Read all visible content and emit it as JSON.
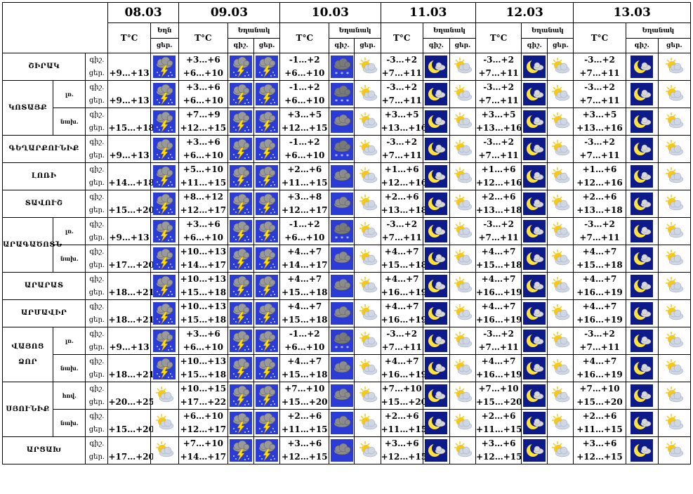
{
  "dates": [
    "08.03",
    "09.03",
    "10.03",
    "11.03",
    "12.03",
    "13.03"
  ],
  "hdr": {
    "temp": "T°C",
    "weather": "Եղանակ",
    "weather_short": "Եղն",
    "day": "ցեր.",
    "night": "գիշ."
  },
  "rows": [
    {
      "group": "ՇԻՐԱԿ",
      "sub": "",
      "t08": [
        "",
        "+9…+13"
      ],
      "t09": [
        "+3…+6",
        "+6…+10"
      ],
      "t10": [
        "-1…+2",
        "+6…+10"
      ],
      "t11": [
        "-3…+2",
        "+7…+11"
      ],
      "t12": [
        "-3…+2",
        "+7…+11"
      ],
      "t13": [
        "-3…+2",
        "+7…+11"
      ],
      "i10": [
        "nightsnow",
        "sunny"
      ]
    },
    {
      "group": "ԿՈՏԱՅՔ",
      "sub": "լռ.",
      "t08": [
        "",
        "+9…+13"
      ],
      "t09": [
        "+3…+6",
        "+6…+10"
      ],
      "t10": [
        "-1…+2",
        "+6…+10"
      ],
      "t11": [
        "-3…+2",
        "+7…+11"
      ],
      "t12": [
        "-3…+2",
        "+7…+11"
      ],
      "t13": [
        "-3…+2",
        "+7…+11"
      ],
      "i10": [
        "nightsnow",
        "sunny"
      ]
    },
    {
      "group": "",
      "sub": "նախ.",
      "t08": [
        "",
        "+15…+18"
      ],
      "t09": [
        "+7…+9",
        "+12…+15"
      ],
      "t10": [
        "+3…+5",
        "+12…+15"
      ],
      "t11": [
        "+3…+5",
        "+13…+16"
      ],
      "t12": [
        "+3…+5",
        "+13…+16"
      ],
      "t13": [
        "+3…+5",
        "+13…+16"
      ],
      "i10": [
        "cloudy",
        "sunny"
      ]
    },
    {
      "group": "ԳԵՂԱՐՔՈՒՆԻՔ",
      "sub": "",
      "t08": [
        "",
        "+9…+13"
      ],
      "t09": [
        "+3…+6",
        "+6…+10"
      ],
      "t10": [
        "-1…+2",
        "+6…+10"
      ],
      "t11": [
        "-3…+2",
        "+7…+11"
      ],
      "t12": [
        "-3…+2",
        "+7…+11"
      ],
      "t13": [
        "-3…+2",
        "+7…+11"
      ],
      "i10": [
        "nightsnow",
        "sunny"
      ]
    },
    {
      "group": "ԼՈՌԻ",
      "sub": "",
      "t08": [
        "",
        "+14…+18"
      ],
      "t09": [
        "+5…+10",
        "+11…+15"
      ],
      "t10": [
        "+2…+6",
        "+11…+15"
      ],
      "t11": [
        "+1…+6",
        "+12…+16"
      ],
      "t12": [
        "+1…+6",
        "+12…+16"
      ],
      "t13": [
        "+1…+6",
        "+12…+16"
      ],
      "i10": [
        "cloudy",
        "sunny"
      ]
    },
    {
      "group": "ՏԱՎՈՒՇ",
      "sub": "",
      "t08": [
        "",
        "+15…+20"
      ],
      "t09": [
        "+8…+12",
        "+12…+17"
      ],
      "t10": [
        "+3…+8",
        "+12…+17"
      ],
      "t11": [
        "+2…+6",
        "+13…+18"
      ],
      "t12": [
        "+2…+6",
        "+13…+18"
      ],
      "t13": [
        "+2…+6",
        "+13…+18"
      ],
      "i10": [
        "cloudy",
        "sunny"
      ]
    },
    {
      "group": "ԱՐԱԳԱԾՈՏՆ",
      "sub": "լռ.",
      "t08": [
        "",
        "+9…+13"
      ],
      "t09": [
        "+3…+6",
        "+6…+10"
      ],
      "t10": [
        "-1…+2",
        "+6…+10"
      ],
      "t11": [
        "-3…+2",
        "+7…+11"
      ],
      "t12": [
        "-3…+2",
        "+7…+11"
      ],
      "t13": [
        "-3…+2",
        "+7…+11"
      ],
      "i10": [
        "nightsnow",
        "sunny"
      ]
    },
    {
      "group": "",
      "sub": "նախ.",
      "t08": [
        "",
        "+17…+20"
      ],
      "t09": [
        "+10…+13",
        "+14…+17"
      ],
      "t10": [
        "+4…+7",
        "+14…+17"
      ],
      "t11": [
        "+4…+7",
        "+15…+18"
      ],
      "t12": [
        "+4…+7",
        "+15…+18"
      ],
      "t13": [
        "+4…+7",
        "+15…+18"
      ],
      "i10": [
        "cloudy",
        "sunny"
      ]
    },
    {
      "group": "ԱՐԱՐԱՏ",
      "sub": "",
      "t08": [
        "",
        "+18…+21"
      ],
      "t09": [
        "+10…+13",
        "+15…+18"
      ],
      "t10": [
        "+4…+7",
        "+15…+18"
      ],
      "t11": [
        "+4…+7",
        "+16…+19"
      ],
      "t12": [
        "+4…+7",
        "+16…+19"
      ],
      "t13": [
        "+4…+7",
        "+16…+19"
      ],
      "i10": [
        "cloudy",
        "sunny"
      ]
    },
    {
      "group": "ԱՐՄԱՎԻՐ",
      "sub": "",
      "t08": [
        "",
        "+18…+21"
      ],
      "t09": [
        "+10…+13",
        "+15…+18"
      ],
      "t10": [
        "+4…+7",
        "+15…+18"
      ],
      "t11": [
        "+4…+7",
        "+16…+19"
      ],
      "t12": [
        "+4…+7",
        "+16…+19"
      ],
      "t13": [
        "+4…+7",
        "+16…+19"
      ],
      "i10": [
        "cloudy",
        "sunny"
      ]
    },
    {
      "group": "ՎԱՅՈՑ ՁՈՐ",
      "sub": "լռ.",
      "t08": [
        "",
        "+9…+13"
      ],
      "t09": [
        "+3…+6",
        "+6…+10"
      ],
      "t10": [
        "-1…+2",
        "+6…+10"
      ],
      "t11": [
        "-3…+2",
        "+7…+11"
      ],
      "t12": [
        "-3…+2",
        "+7…+11"
      ],
      "t13": [
        "-3…+2",
        "+7…+11"
      ],
      "i10": [
        "nightsnow",
        "sunny"
      ]
    },
    {
      "group": "",
      "sub": "նախ.",
      "t08": [
        "",
        "+18…+21"
      ],
      "t09": [
        "+10…+13",
        "+15…+18"
      ],
      "t10": [
        "+4…+7",
        "+15…+18"
      ],
      "t11": [
        "+4…+7",
        "+16…+19"
      ],
      "t12": [
        "+4…+7",
        "+16…+19"
      ],
      "t13": [
        "+4…+7",
        "+16…+19"
      ],
      "i10": [
        "cloudy",
        "sunny"
      ]
    },
    {
      "group": "ՍՅՈՒՆԻՔ",
      "sub": "հով.",
      "t08": [
        "",
        "+20…+25"
      ],
      "t09": [
        "+10…+15",
        "+17…+22"
      ],
      "t10": [
        "+7…+10",
        "+15…+20"
      ],
      "t11": [
        "+7…+10",
        "+15…+20"
      ],
      "t12": [
        "+7…+10",
        "+15…+20"
      ],
      "t13": [
        "+7…+10",
        "+15…+20"
      ],
      "i10": [
        "cloudy",
        "sunny"
      ]
    },
    {
      "group": "",
      "sub": "նախ.",
      "t08": [
        "",
        "+15…+20"
      ],
      "t09": [
        "+6…+10",
        "+12…+17"
      ],
      "t10": [
        "+2…+6",
        "+11…+15"
      ],
      "t11": [
        "+2…+6",
        "+11…+15"
      ],
      "t12": [
        "+2…+6",
        "+11…+15"
      ],
      "t13": [
        "+2…+6",
        "+11…+15"
      ],
      "i10": [
        "cloudy",
        "sunny"
      ]
    },
    {
      "group": "ԱՐՑԱԽ",
      "sub": "",
      "t08": [
        "",
        "+17…+20"
      ],
      "t09": [
        "+7…+10",
        "+14…+17"
      ],
      "t10": [
        "+3…+6",
        "+12…+15"
      ],
      "t11": [
        "+3…+6",
        "+12…+15"
      ],
      "t12": [
        "+3…+6",
        "+12…+15"
      ],
      "t13": [
        "+3…+6",
        "+12…+15"
      ],
      "i10": [
        "cloudy",
        "sunny"
      ]
    }
  ],
  "i08_storm": [
    "ՇԻՐԱԿ",
    "ԿՈՏԱՅՔ",
    "ԳԵՂԱՐՔՈՒՆԻՔ",
    "ԼՈՌԻ",
    "ՏԱՎՈՒՇ",
    "ԱՐԱԳԱԾՈՏՆ",
    "ԱՐԱՐԱՏ",
    "ԱՐՄԱՎԻՐ",
    "ՎԱՅՈՑ ՁՈՐ"
  ],
  "colors": {
    "sky": "#2a3bd6",
    "night": "#0d1a8a",
    "cloud": "#8a8a8a",
    "sun": "#f6c817",
    "moon": "#ffe23a",
    "bolt": "#ffe000"
  }
}
